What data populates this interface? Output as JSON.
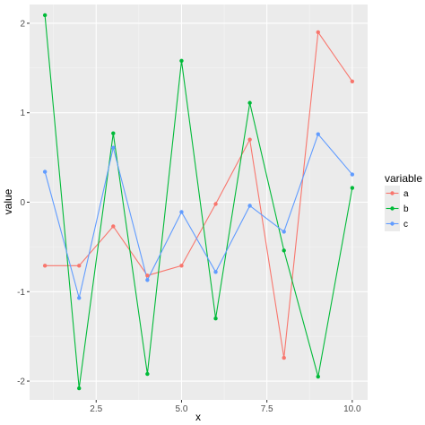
{
  "chart_data": {
    "type": "line",
    "title": "",
    "xlabel": "x",
    "ylabel": "value",
    "xlim": [
      0.55,
      10.45
    ],
    "ylim": [
      -2.21,
      2.21
    ],
    "x_ticks": [
      2.5,
      5.0,
      7.5,
      10.0
    ],
    "x_tick_labels": [
      "2.5",
      "5.0",
      "7.5",
      "10.0"
    ],
    "x_minor": [
      1.25,
      3.75,
      6.25,
      8.75
    ],
    "y_ticks": [
      -2,
      -1,
      0,
      1,
      2
    ],
    "y_tick_labels": [
      "-2",
      "-1",
      "0",
      "1",
      "2"
    ],
    "y_minor": [
      -1.5,
      -0.5,
      0.5,
      1.5
    ],
    "grid": true,
    "legend": {
      "title": "variable",
      "position": "right"
    },
    "x": [
      1,
      2,
      3,
      4,
      5,
      6,
      7,
      8,
      9,
      10
    ],
    "series": [
      {
        "name": "a",
        "color": "#F8766D",
        "values": [
          -0.71,
          -0.71,
          -0.27,
          -0.82,
          -0.71,
          -0.02,
          0.7,
          -1.74,
          1.9,
          1.35
        ]
      },
      {
        "name": "b",
        "color": "#00BA38",
        "values": [
          2.09,
          -2.08,
          0.77,
          -1.92,
          1.58,
          -1.3,
          1.11,
          -0.54,
          -1.95,
          0.16
        ]
      },
      {
        "name": "c",
        "color": "#619CFF",
        "values": [
          0.34,
          -1.07,
          0.61,
          -0.87,
          -0.11,
          -0.78,
          -0.04,
          -0.33,
          0.76,
          0.31
        ]
      }
    ]
  }
}
